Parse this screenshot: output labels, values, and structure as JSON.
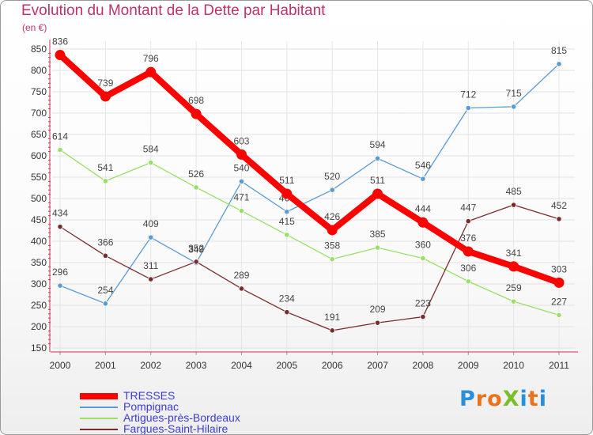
{
  "title": "Evolution du Montant de la Dette par Habitant",
  "unit": "(en €)",
  "logo": {
    "text": "ProXiti",
    "letter_colors": [
      "#2a8fd8",
      "#e8731a",
      "#e8731a",
      "#7bbd2a",
      "#2a8fd8",
      "#e8731a"
    ]
  },
  "chart_data": {
    "type": "line",
    "x": [
      "2000",
      "2001",
      "2002",
      "2003",
      "2004",
      "2005",
      "2006",
      "2007",
      "2008",
      "2009",
      "2010",
      "2011"
    ],
    "ylim": [
      150,
      850
    ],
    "yticks": [
      150,
      200,
      250,
      300,
      350,
      400,
      450,
      500,
      550,
      600,
      650,
      700,
      750,
      800,
      850
    ],
    "grid": "horizontal and vertical",
    "legend_placement": "bottom-left",
    "series": [
      {
        "name": "TRESSES",
        "color": "#ff0000",
        "values": [
          836,
          739,
          796,
          698,
          603,
          511,
          426,
          511,
          444,
          376,
          341,
          303
        ]
      },
      {
        "name": "Pompignac",
        "color": "#5b9bd5",
        "values": [
          296,
          254,
          409,
          349,
          540,
          469,
          520,
          594,
          546,
          712,
          715,
          815
        ]
      },
      {
        "name": "Artigues-près-Bordeaux",
        "color": "#99e066",
        "values": [
          614,
          541,
          584,
          526,
          471,
          415,
          358,
          385,
          360,
          306,
          259,
          227
        ]
      },
      {
        "name": "Fargues-Saint-Hilaire",
        "color": "#7a2c2c",
        "values": [
          434,
          366,
          311,
          352,
          289,
          234,
          191,
          209,
          223,
          447,
          485,
          452
        ]
      }
    ]
  }
}
